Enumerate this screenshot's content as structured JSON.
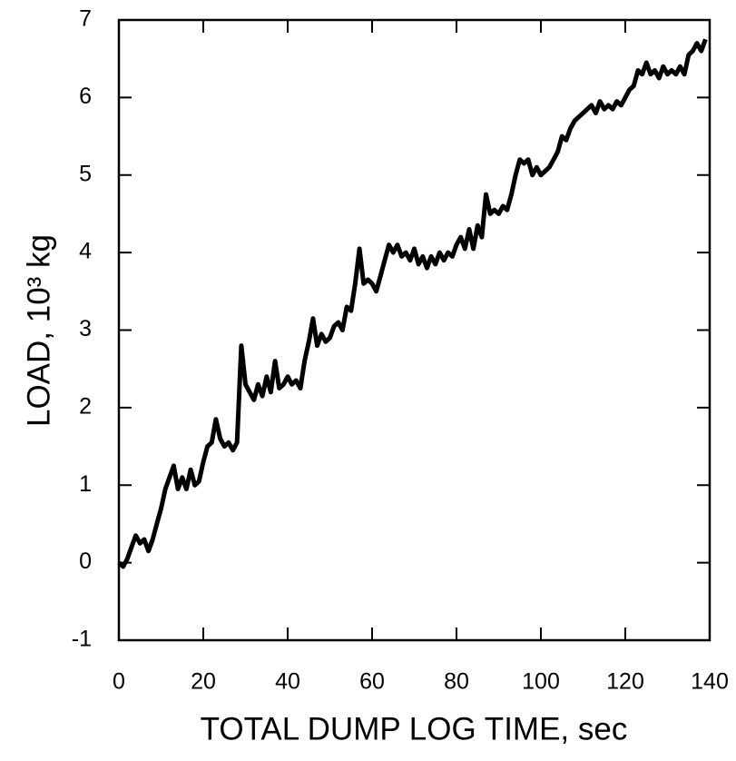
{
  "chart_data": {
    "type": "line",
    "xlabel": "TOTAL DUMP LOG TIME, sec",
    "ylabel": "LOAD, 10³ kg",
    "x": [
      0,
      1,
      2,
      3,
      4,
      5,
      6,
      7,
      8,
      9,
      10,
      11,
      12,
      13,
      14,
      15,
      16,
      17,
      18,
      19,
      20,
      21,
      22,
      23,
      24,
      25,
      26,
      27,
      28,
      29,
      30,
      31,
      32,
      33,
      34,
      35,
      36,
      37,
      38,
      39,
      40,
      41,
      42,
      43,
      44,
      45,
      46,
      47,
      48,
      49,
      50,
      51,
      52,
      53,
      54,
      55,
      56,
      57,
      58,
      59,
      60,
      61,
      62,
      63,
      64,
      65,
      66,
      67,
      68,
      69,
      70,
      71,
      72,
      73,
      74,
      75,
      76,
      77,
      78,
      79,
      80,
      81,
      82,
      83,
      84,
      85,
      86,
      87,
      88,
      89,
      90,
      91,
      92,
      93,
      94,
      95,
      96,
      97,
      98,
      99,
      100,
      101,
      102,
      103,
      104,
      105,
      106,
      107,
      108,
      109,
      110,
      111,
      112,
      113,
      114,
      115,
      116,
      117,
      118,
      119,
      120,
      121,
      122,
      123,
      124,
      125,
      126,
      127,
      128,
      129,
      130,
      131,
      132,
      133,
      134,
      135,
      136,
      137,
      138,
      139
    ],
    "series": [
      {
        "color": "#000000",
        "values": [
          0.0,
          -0.05,
          0.05,
          0.2,
          0.35,
          0.25,
          0.3,
          0.15,
          0.3,
          0.5,
          0.7,
          0.95,
          1.1,
          1.25,
          0.95,
          1.1,
          0.95,
          1.2,
          1.0,
          1.05,
          1.3,
          1.5,
          1.55,
          1.85,
          1.6,
          1.5,
          1.55,
          1.45,
          1.55,
          2.8,
          2.3,
          2.2,
          2.1,
          2.3,
          2.15,
          2.4,
          2.2,
          2.6,
          2.25,
          2.3,
          2.4,
          2.3,
          2.35,
          2.25,
          2.6,
          2.85,
          3.15,
          2.8,
          2.95,
          2.85,
          2.9,
          3.05,
          3.1,
          3.0,
          3.3,
          3.25,
          3.6,
          4.05,
          3.6,
          3.65,
          3.6,
          3.5,
          3.7,
          3.9,
          4.1,
          4.0,
          4.1,
          3.95,
          4.0,
          3.9,
          4.05,
          3.85,
          3.95,
          3.8,
          3.95,
          3.85,
          4.0,
          3.9,
          4.0,
          3.95,
          4.1,
          4.2,
          4.05,
          4.3,
          4.05,
          4.35,
          4.2,
          4.75,
          4.5,
          4.55,
          4.5,
          4.6,
          4.55,
          4.75,
          5.0,
          5.2,
          5.15,
          5.2,
          5.0,
          5.1,
          5.0,
          5.05,
          5.1,
          5.2,
          5.3,
          5.5,
          5.45,
          5.6,
          5.7,
          5.75,
          5.8,
          5.85,
          5.9,
          5.8,
          5.95,
          5.85,
          5.9,
          5.85,
          5.95,
          5.9,
          6.0,
          6.1,
          6.15,
          6.35,
          6.3,
          6.45,
          6.3,
          6.35,
          6.25,
          6.4,
          6.3,
          6.35,
          6.3,
          6.4,
          6.3,
          6.55,
          6.6,
          6.7,
          6.6,
          6.75
        ]
      }
    ],
    "xlim": [
      0,
      140
    ],
    "xticks": [
      0,
      20,
      40,
      60,
      80,
      100,
      120,
      140
    ],
    "ylim": [
      -1,
      7
    ],
    "yticks": [
      -1,
      0,
      1,
      2,
      3,
      4,
      5,
      6,
      7
    ]
  }
}
